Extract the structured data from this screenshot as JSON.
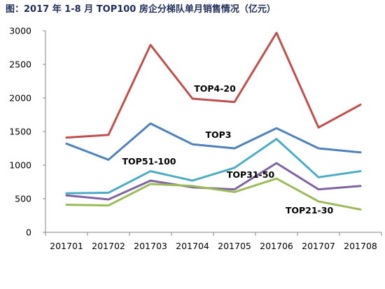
{
  "chart_data": {
    "type": "line",
    "title": "图：2017 年 1-8 月 TOP100 房企分梯队单月销售情况（亿元）",
    "xlabel": "",
    "ylabel": "",
    "categories": [
      "201701",
      "201702",
      "201703",
      "201704",
      "201705",
      "201706",
      "201707",
      "201708"
    ],
    "ylim": [
      0,
      3000
    ],
    "yticks": [
      0,
      500,
      1000,
      1500,
      2000,
      2500,
      3000
    ],
    "grid": false,
    "legend": "none",
    "series": [
      {
        "name": "TOP4-20",
        "color": "#c0504d",
        "values": [
          1410,
          1450,
          2790,
          1990,
          1940,
          2970,
          1560,
          1900
        ]
      },
      {
        "name": "TOP3",
        "color": "#4f81bd",
        "values": [
          1320,
          1080,
          1620,
          1310,
          1250,
          1550,
          1250,
          1190
        ]
      },
      {
        "name": "TOP51-100",
        "color": "#4bacc6",
        "values": [
          580,
          590,
          910,
          770,
          960,
          1390,
          820,
          910
        ]
      },
      {
        "name": "TOP31-50",
        "color": "#8064a2",
        "values": [
          550,
          490,
          770,
          670,
          640,
          1030,
          640,
          690
        ]
      },
      {
        "name": "TOP21-30",
        "color": "#9bbb59",
        "values": [
          410,
          400,
          720,
          690,
          600,
          800,
          460,
          340
        ]
      }
    ]
  }
}
